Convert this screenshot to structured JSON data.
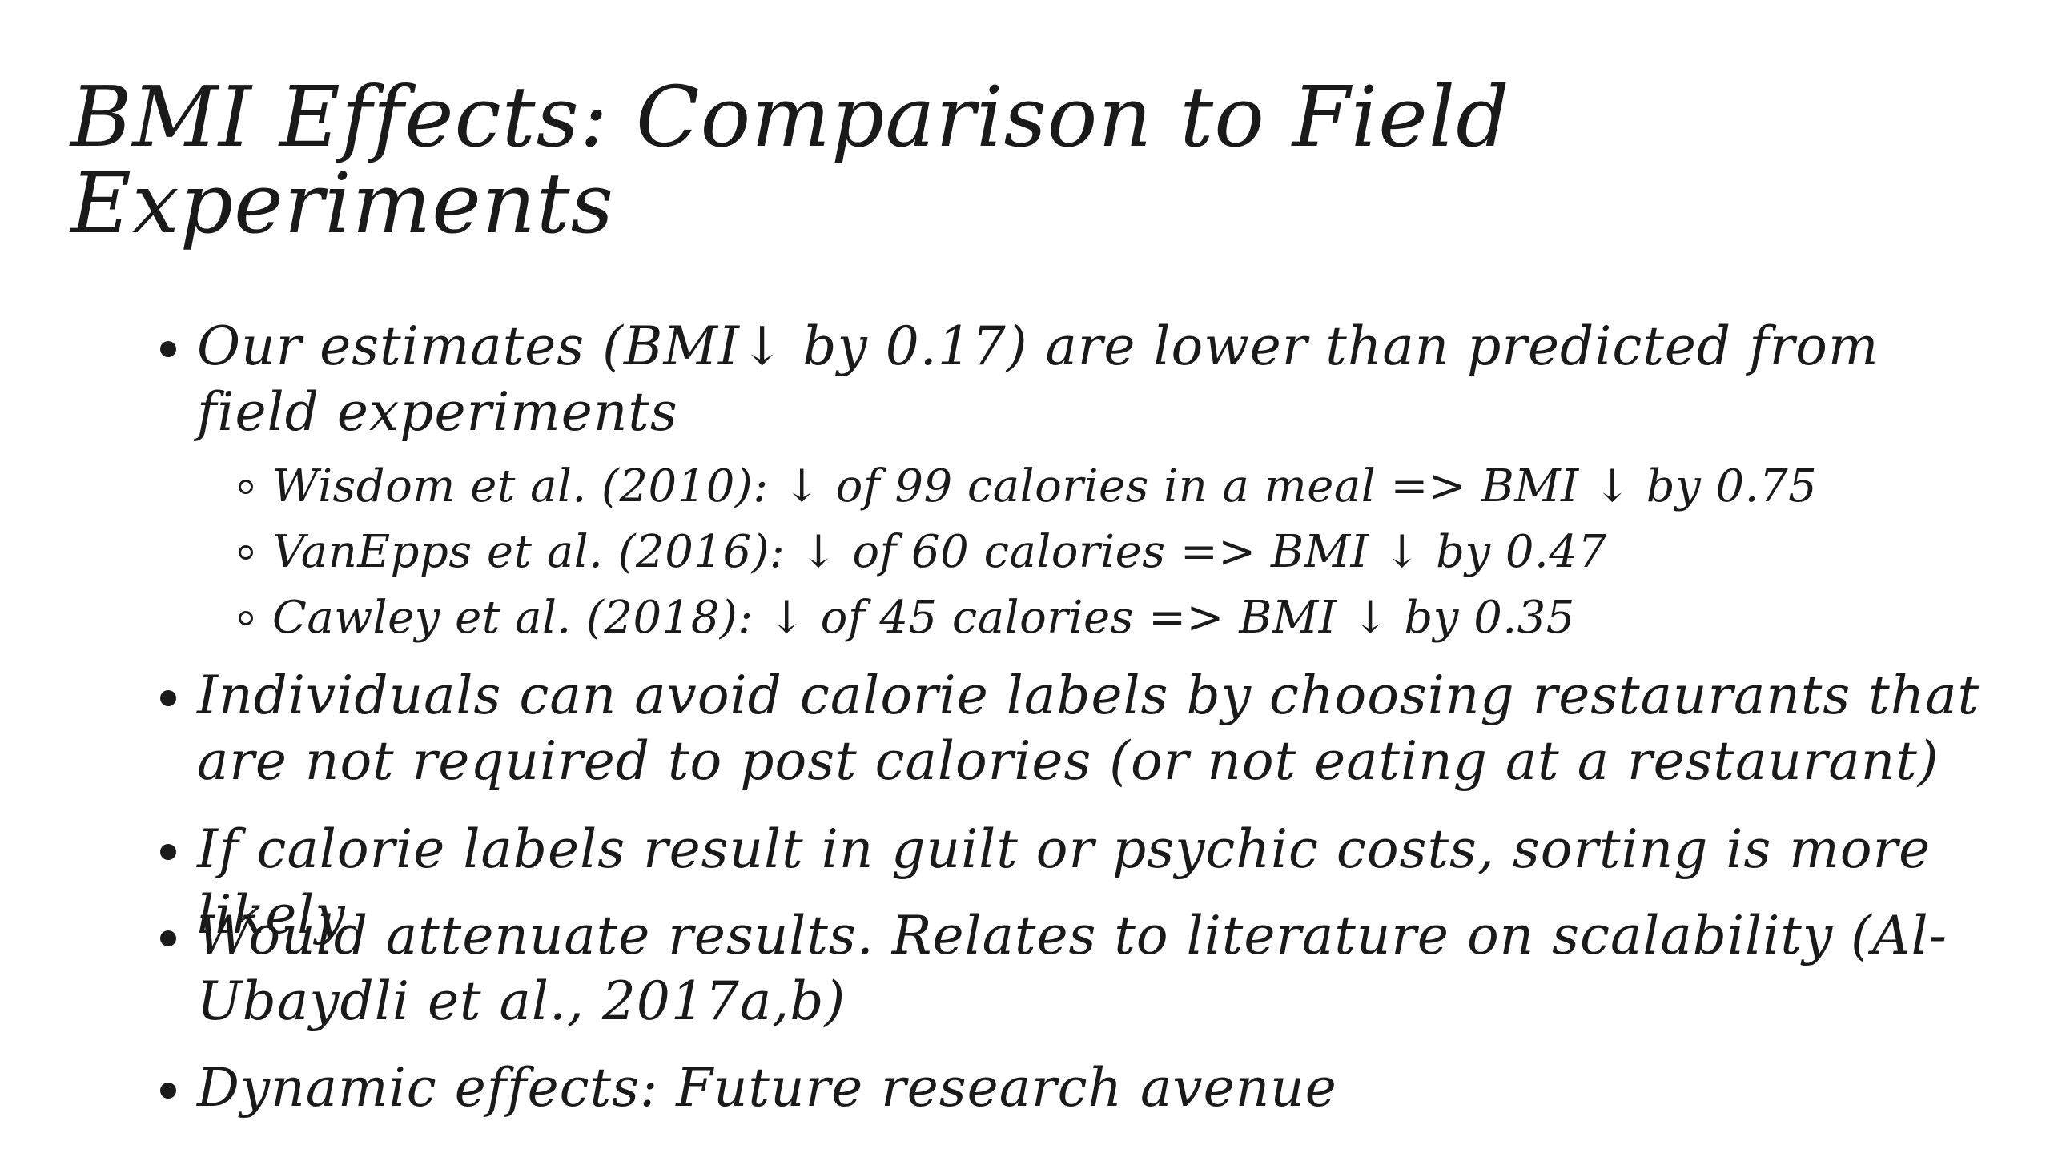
{
  "slide": {
    "title": "BMI Effects: Comparison to Field Experiments",
    "bullets": [
      {
        "text": "Our estimates (BMI↓ by 0.17) are lower than predicted from field experiments",
        "sub": [
          "Wisdom et al. (2010): ↓ of 99 calories in a meal => BMI ↓ by 0.75",
          "VanEpps et al. (2016): ↓ of 60 calories => BMI ↓ by 0.47",
          "Cawley et al. (2018): ↓ of 45 calories => BMI ↓ by 0.35"
        ]
      },
      {
        "text": "Individuals can avoid calorie labels by choosing restaurants that are not required to post calories (or not eating at a restaurant)"
      },
      {
        "text": "If calorie labels result in guilt or psychic costs, sorting is more likely"
      },
      {
        "text": "Would attenuate results. Relates to literature on scalability (Al-Ubaydli et al., 2017a,b)"
      },
      {
        "text": "Dynamic effects: Future research avenue"
      }
    ]
  }
}
